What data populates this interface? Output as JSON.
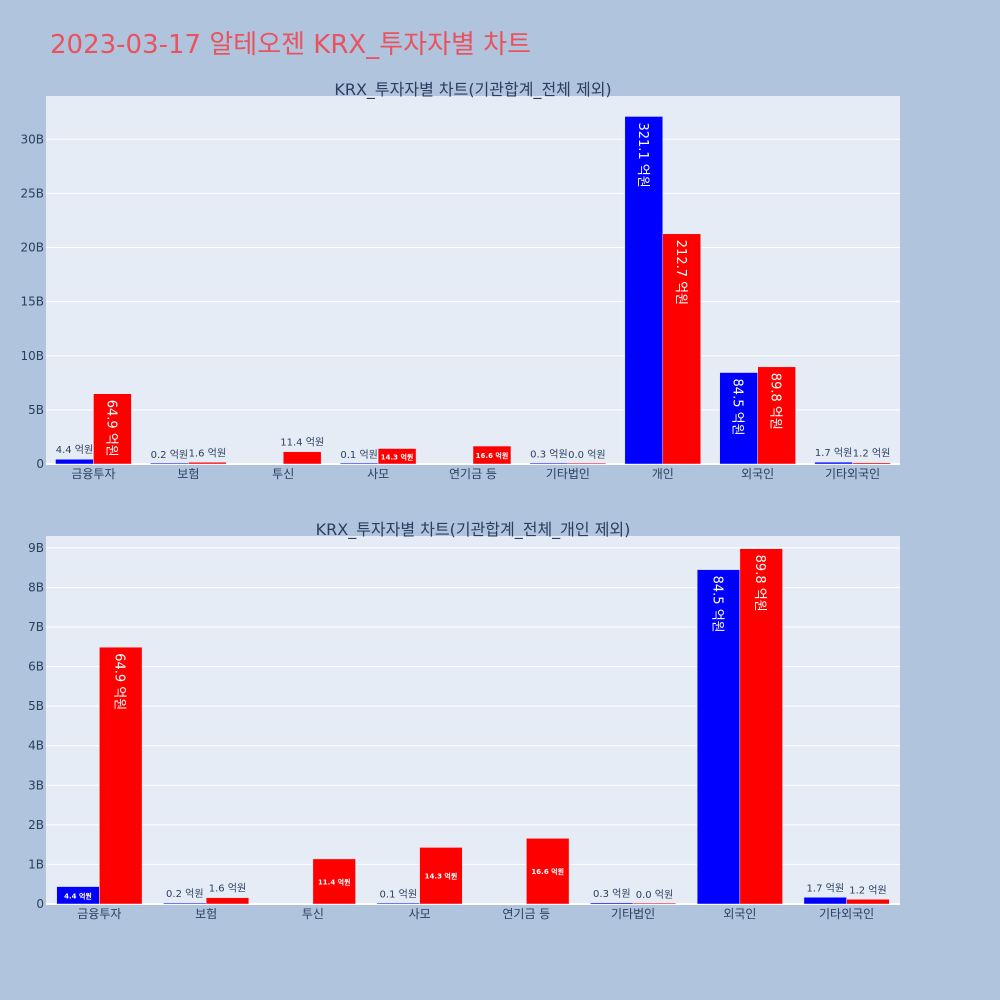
{
  "page": {
    "title": "2023-03-17 알테오젠 KRX_투자자별 차트"
  },
  "colors": {
    "background": "#b0c4de",
    "plot_bg": "#e5ecf6",
    "gridline": "#ffffff",
    "title": "#e8535f",
    "text": "#2a3f5f",
    "series_blue": "#0000ff",
    "series_red": "#ff0000"
  },
  "chart_data": [
    {
      "type": "bar",
      "title": "KRX_투자자별 차트(기관합계_전체 제외)",
      "categories": [
        "금융투자",
        "보험",
        "투신",
        "사모",
        "연기금 등",
        "기타법인",
        "개인",
        "외국인",
        "기타외국인"
      ],
      "ylim": [
        0,
        34
      ],
      "y_ticks": [
        0,
        5,
        10,
        15,
        20,
        25,
        30
      ],
      "y_tick_labels": [
        "0",
        "5B",
        "10B",
        "15B",
        "20B",
        "25B",
        "30B"
      ],
      "grid": true,
      "series": [
        {
          "color": "#0000ff",
          "values": [
            0.44,
            0.02,
            null,
            0.01,
            null,
            0.03,
            32.11,
            8.45,
            0.17
          ],
          "labels": [
            "4.4 억원",
            "0.2 억원",
            "",
            "0.1 억원",
            "",
            "0.3 억원",
            "321.1 억원",
            "84.5 억원",
            "1.7 억원"
          ]
        },
        {
          "color": "#ff0000",
          "values": [
            6.49,
            0.16,
            1.14,
            1.43,
            1.66,
            0.0,
            21.27,
            8.98,
            0.12
          ],
          "labels": [
            "64.9 억원",
            "1.6 억원",
            "11.4 억원",
            "14.3 억원",
            "16.6 억원",
            "0.0 억원",
            "212.7 억원",
            "89.8 억원",
            "1.2 억원"
          ]
        }
      ]
    },
    {
      "type": "bar",
      "title": "KRX_투자자별 차트(기관합계_전체_개인 제외)",
      "categories": [
        "금융투자",
        "보험",
        "투신",
        "사모",
        "연기금 등",
        "기타법인",
        "외국인",
        "기타외국인"
      ],
      "ylim": [
        0,
        9.3
      ],
      "y_ticks": [
        0,
        1,
        2,
        3,
        4,
        5,
        6,
        7,
        8,
        9
      ],
      "y_tick_labels": [
        "0",
        "1B",
        "2B",
        "3B",
        "4B",
        "5B",
        "6B",
        "7B",
        "8B",
        "9B"
      ],
      "grid": true,
      "series": [
        {
          "color": "#0000ff",
          "values": [
            0.44,
            0.02,
            null,
            0.01,
            null,
            0.03,
            8.45,
            0.17
          ],
          "labels": [
            "4.4 억원",
            "0.2 억원",
            "",
            "0.1 억원",
            "",
            "0.3 억원",
            "84.5 억원",
            "1.7 억원"
          ]
        },
        {
          "color": "#ff0000",
          "values": [
            6.49,
            0.16,
            1.14,
            1.43,
            1.66,
            0.0,
            8.98,
            0.12
          ],
          "labels": [
            "64.9 억원",
            "1.6 억원",
            "11.4 억원",
            "14.3 억원",
            "16.6 억원",
            "0.0 억원",
            "89.8 억원",
            "1.2 억원"
          ]
        }
      ]
    }
  ]
}
